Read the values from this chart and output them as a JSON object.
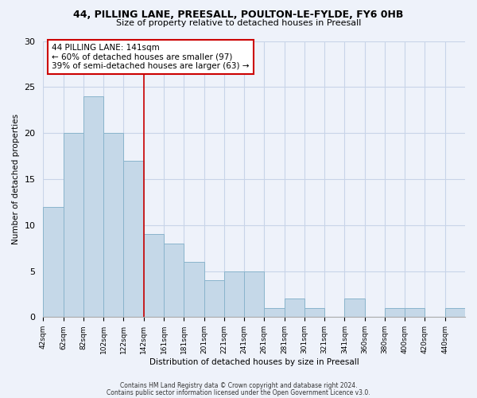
{
  "title_line1": "44, PILLING LANE, PREESALL, POULTON-LE-FYLDE, FY6 0HB",
  "title_line2": "Size of property relative to detached houses in Preesall",
  "xlabel": "Distribution of detached houses by size in Preesall",
  "ylabel": "Number of detached properties",
  "bin_labels": [
    "42sqm",
    "62sqm",
    "82sqm",
    "102sqm",
    "122sqm",
    "142sqm",
    "161sqm",
    "181sqm",
    "201sqm",
    "221sqm",
    "241sqm",
    "261sqm",
    "281sqm",
    "301sqm",
    "321sqm",
    "341sqm",
    "360sqm",
    "380sqm",
    "400sqm",
    "420sqm",
    "440sqm"
  ],
  "bar_heights": [
    12,
    20,
    24,
    20,
    17,
    9,
    8,
    6,
    4,
    5,
    5,
    1,
    2,
    1,
    0,
    2,
    0,
    1,
    1,
    0,
    1
  ],
  "bar_color": "#c5d8e8",
  "bar_edge_color": "#8ab4cc",
  "vline_index": 5,
  "annotation_text": "44 PILLING LANE: 141sqm\n← 60% of detached houses are smaller (97)\n39% of semi-detached houses are larger (63) →",
  "annotation_box_color": "#ffffff",
  "annotation_box_edge": "#cc0000",
  "vline_color": "#cc0000",
  "ylim": [
    0,
    30
  ],
  "yticks": [
    0,
    5,
    10,
    15,
    20,
    25,
    30
  ],
  "footer_line1": "Contains HM Land Registry data © Crown copyright and database right 2024.",
  "footer_line2": "Contains public sector information licensed under the Open Government Licence v3.0.",
  "background_color": "#eef2fa"
}
